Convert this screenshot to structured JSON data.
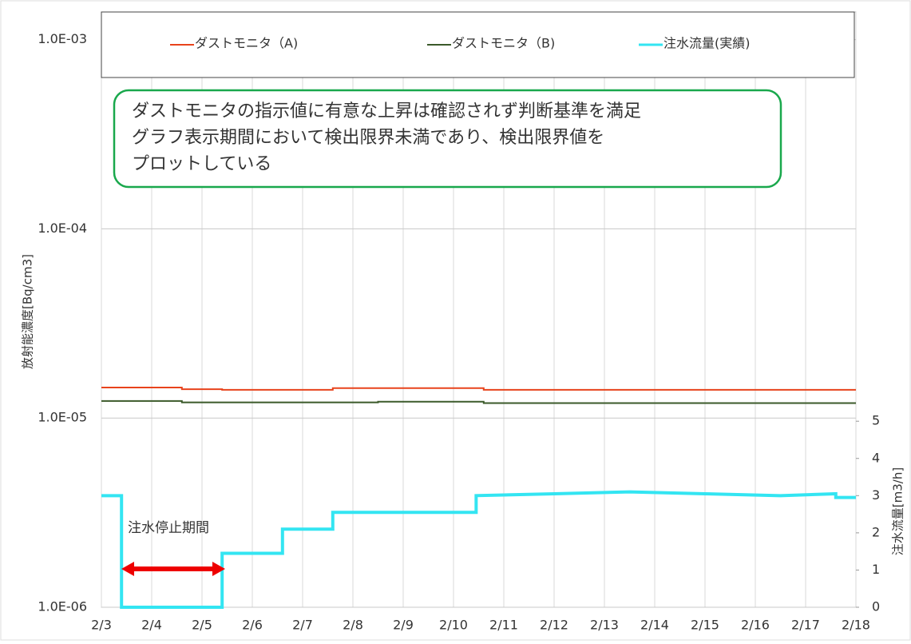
{
  "chart_data": {
    "type": "line",
    "ylabel": "放射能濃度[Bq/cm3]",
    "y2label": "注水流量[m3/h]",
    "log_y": true,
    "grid": true,
    "legend": "top",
    "ylim": [
      1e-06,
      0.0014
    ],
    "yticks": [
      {
        "value": 1e-06,
        "label": "1.0E-06"
      },
      {
        "value": 1e-05,
        "label": "1.0E-05"
      },
      {
        "value": 0.0001,
        "label": "1.0E-04"
      },
      {
        "value": 0.001,
        "label": "1.0E-03"
      }
    ],
    "y2lim": [
      0,
      16
    ],
    "y2ticks": [
      0,
      1,
      2,
      3,
      4,
      5
    ],
    "xlim": [
      0,
      15
    ],
    "xticks": [
      {
        "value": 0,
        "label": "2/3"
      },
      {
        "value": 1,
        "label": "2/4"
      },
      {
        "value": 2,
        "label": "2/5"
      },
      {
        "value": 3,
        "label": "2/6"
      },
      {
        "value": 4,
        "label": "2/7"
      },
      {
        "value": 5,
        "label": "2/8"
      },
      {
        "value": 6,
        "label": "2/9"
      },
      {
        "value": 7,
        "label": "2/10"
      },
      {
        "value": 8,
        "label": "2/11"
      },
      {
        "value": 9,
        "label": "2/12"
      },
      {
        "value": 10,
        "label": "2/13"
      },
      {
        "value": 11,
        "label": "2/14"
      },
      {
        "value": 12,
        "label": "2/15"
      },
      {
        "value": 13,
        "label": "2/16"
      },
      {
        "value": 14,
        "label": "2/17"
      },
      {
        "value": 15,
        "label": "2/18"
      }
    ],
    "series": [
      {
        "name": "ダストモニタ（A)",
        "color": "#e8431c",
        "x": [
          0,
          1.6,
          1.6,
          2.4,
          2.4,
          4.6,
          4.6,
          7.6,
          7.6,
          15
        ],
        "values": [
          1.45e-05,
          1.45e-05,
          1.42e-05,
          1.42e-05,
          1.41e-05,
          1.41e-05,
          1.44e-05,
          1.44e-05,
          1.41e-05,
          1.41e-05
        ]
      },
      {
        "name": "ダストモニタ（B)",
        "color": "#3b5a2a",
        "x": [
          0,
          1.6,
          1.6,
          5.5,
          5.5,
          7.6,
          7.6,
          15
        ],
        "values": [
          1.23e-05,
          1.23e-05,
          1.21e-05,
          1.21e-05,
          1.22e-05,
          1.22e-05,
          1.2e-05,
          1.2e-05
        ]
      },
      {
        "name": "注水流量(実績)",
        "color": "#33e5f2",
        "axis": "y2",
        "x": [
          0,
          0.4,
          0.4,
          2.4,
          2.4,
          3.6,
          3.6,
          4.6,
          4.6,
          7.45,
          7.45,
          9,
          10.5,
          12,
          13.5,
          14.6,
          14.6,
          15
        ],
        "values": [
          3,
          3,
          0,
          0,
          1.45,
          1.45,
          2.1,
          2.1,
          2.55,
          2.55,
          3,
          3.05,
          3.1,
          3.05,
          3,
          3.05,
          2.95,
          2.95
        ]
      }
    ],
    "annotations": {
      "note_lines": [
        "ダストモニタの指示値に有意な上昇は確認されず判断基準を満足",
        "グラフ表示期間において検出限界未満であり、検出限界値を",
        "プロットしている"
      ],
      "stop_label": "注水停止期間"
    }
  }
}
